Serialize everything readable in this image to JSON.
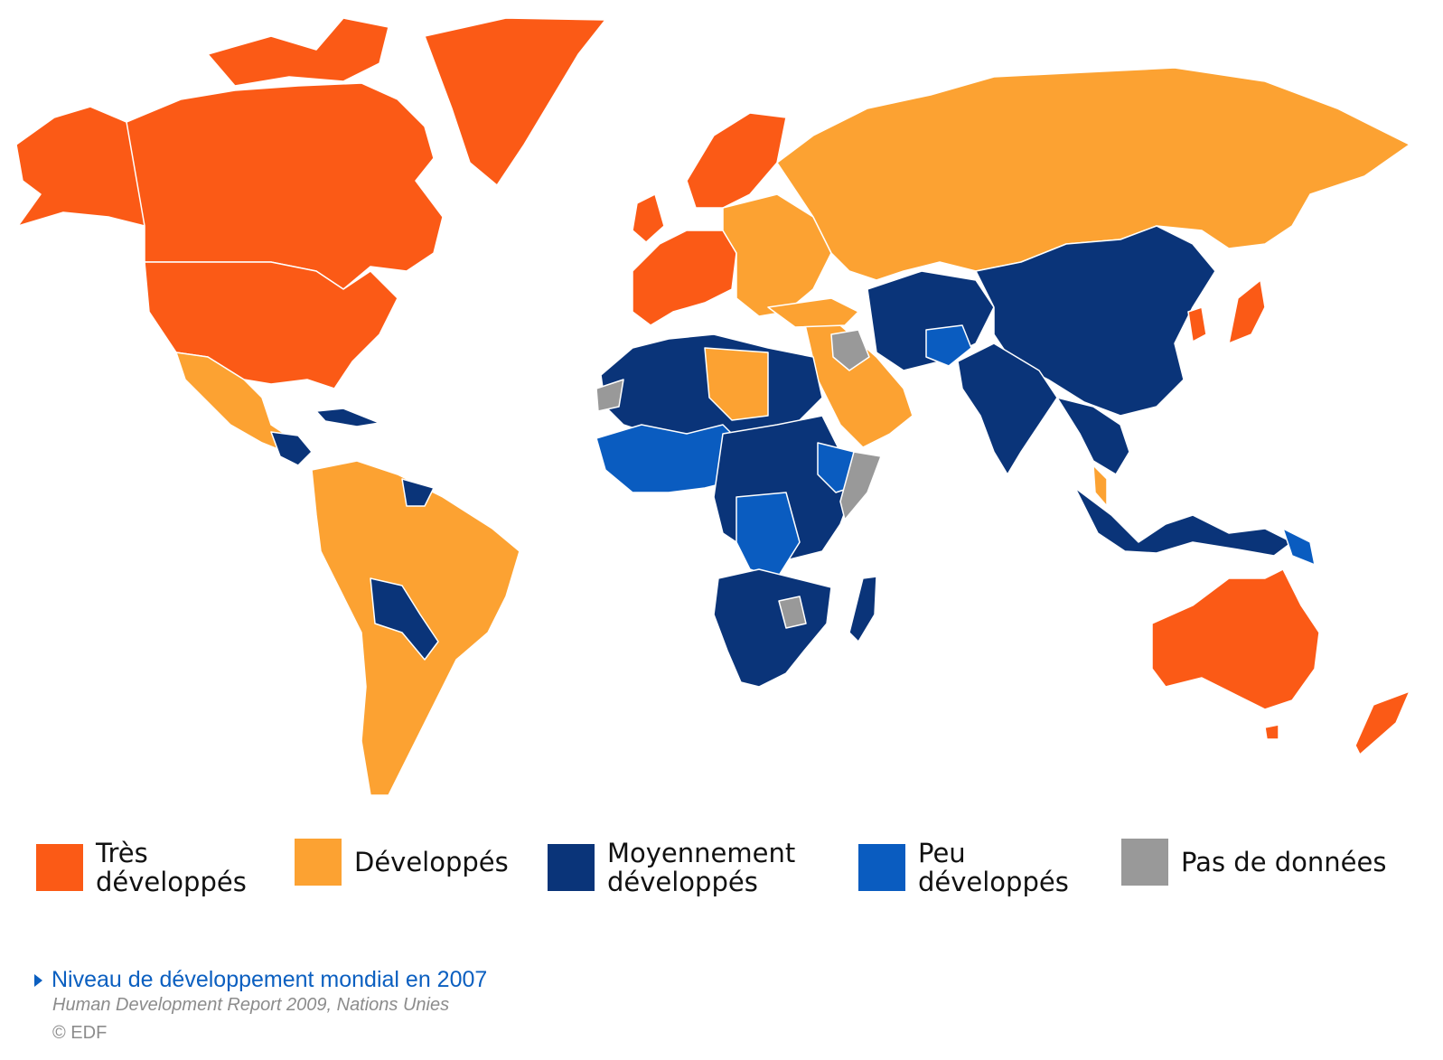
{
  "colors": {
    "tres_developpes": "#fb5a16",
    "developpes": "#fca232",
    "moyennement_developpes": "#0a3479",
    "peu_developpes": "#0a5cc0",
    "pas_de_donnees": "#999999"
  },
  "legend": [
    {
      "key": "tres_developpes",
      "label": "Très\ndéveloppés"
    },
    {
      "key": "developpes",
      "label": "Développés"
    },
    {
      "key": "moyennement_developpes",
      "label": "Moyennement\ndéveloppés"
    },
    {
      "key": "peu_developpes",
      "label": "Peu\ndéveloppés"
    },
    {
      "key": "pas_de_donnees",
      "label": "Pas de données"
    }
  ],
  "caption": {
    "title": "Niveau de développement mondial en 2007",
    "source": "Human Development Report 2009, Nations Unies",
    "copyright": "© EDF"
  }
}
